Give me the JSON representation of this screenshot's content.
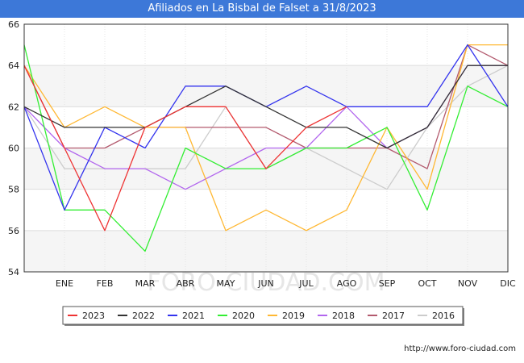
{
  "title": "Afiliados en La Bisbal de Falset a 31/8/2023",
  "url": "http://www.foro-ciudad.com",
  "watermark": "FORO-CIUDAD.COM",
  "chart_data": {
    "type": "line",
    "title": "Afiliados en La Bisbal de Falset a 31/8/2023",
    "categories": [
      "",
      "ENE",
      "FEB",
      "MAR",
      "ABR",
      "MAY",
      "JUN",
      "JUL",
      "AGO",
      "SEP",
      "OCT",
      "NOV",
      "DIC"
    ],
    "ylim": [
      54,
      66
    ],
    "yticks": [
      54,
      56,
      58,
      60,
      62,
      64,
      66
    ],
    "grid": true,
    "legend": "bottom",
    "series": [
      {
        "name": "2023",
        "color": "#ee3333",
        "values": [
          64,
          60,
          56,
          61,
          62,
          62,
          59,
          61,
          62,
          null,
          null,
          null,
          null
        ]
      },
      {
        "name": "2022",
        "color": "#333333",
        "values": [
          62,
          61,
          61,
          61,
          62,
          63,
          62,
          61,
          61,
          60,
          61,
          64,
          64
        ]
      },
      {
        "name": "2021",
        "color": "#3333ee",
        "values": [
          62,
          57,
          61,
          60,
          63,
          63,
          62,
          63,
          62,
          62,
          62,
          65,
          62
        ]
      },
      {
        "name": "2020",
        "color": "#33ee33",
        "values": [
          65,
          57,
          57,
          55,
          60,
          59,
          59,
          60,
          60,
          61,
          57,
          63,
          62
        ]
      },
      {
        "name": "2019",
        "color": "#ffb833",
        "values": [
          64,
          61,
          62,
          61,
          61,
          56,
          57,
          56,
          57,
          61,
          58,
          65,
          65
        ]
      },
      {
        "name": "2018",
        "color": "#b266ee",
        "values": [
          62,
          60,
          59,
          59,
          58,
          59,
          60,
          60,
          62,
          60,
          61,
          64,
          64
        ]
      },
      {
        "name": "2017",
        "color": "#b35a6e",
        "values": [
          64,
          60,
          60,
          61,
          61,
          61,
          61,
          60,
          60,
          60,
          59,
          65,
          64
        ]
      },
      {
        "name": "2016",
        "color": "#cccccc",
        "values": [
          62,
          59,
          59,
          59,
          59,
          62,
          59,
          60,
          59,
          58,
          61,
          63,
          64
        ]
      }
    ]
  }
}
